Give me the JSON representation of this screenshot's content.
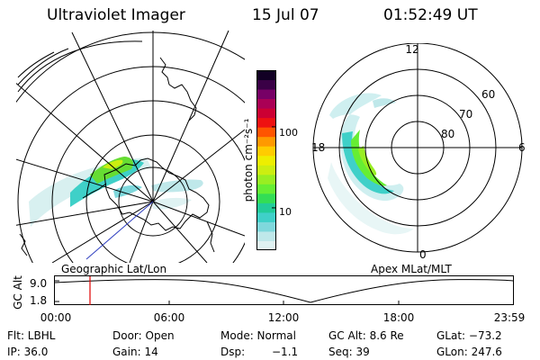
{
  "header": {
    "instrument": "Ultraviolet Imager",
    "date": "15 Jul 07",
    "time": "01:52:49 UT"
  },
  "colors": {
    "background": "#ffffff",
    "grid": "#000000",
    "marker": "#e00000",
    "trajectory": "#3040c0"
  },
  "colorbar": {
    "label": "photon cm⁻²s⁻¹",
    "scale": "log",
    "ticks": [
      "100",
      "10"
    ],
    "tick_values": [
      100,
      10
    ],
    "range": [
      3,
      500
    ],
    "colors": [
      "#dff2f2",
      "#bfe8ea",
      "#7fd8dc",
      "#3fd0c8",
      "#22cc99",
      "#33dd55",
      "#66ee33",
      "#99ee22",
      "#ccee11",
      "#eeee00",
      "#ffcc00",
      "#ff9900",
      "#ff5500",
      "#ee1111",
      "#cc0033",
      "#aa0055",
      "#770066",
      "#3a0046",
      "#120024"
    ]
  },
  "geo_map": {
    "label": "Geographic Lat/Lon"
  },
  "polar_map": {
    "label": "Apex MLat/MLT",
    "mlt_labels": {
      "top": "12",
      "left": "18",
      "right": "6",
      "bottom": "0"
    },
    "lat_labels": [
      "60",
      "70",
      "80"
    ],
    "lat_values": [
      60,
      70,
      80
    ]
  },
  "altitude_plot": {
    "axis_label": "GC Alt",
    "y_ticks": [
      "9.0",
      "1.8"
    ],
    "x_ticks": [
      "00:00",
      "06:00",
      "12:00",
      "18:00",
      "23:59"
    ],
    "marker_time": "01:52:49"
  },
  "info": {
    "row1": {
      "flt": "Flt: LBHL",
      "door": "Door: Open",
      "mode": "Mode: Normal",
      "gcalt": "GC Alt: 8.6 Re",
      "glat": "GLat: −73.2"
    },
    "row2": {
      "ip": "IP: 36.0",
      "gain": "Gain: 14",
      "dsp": "Dsp:",
      "dsp_val": "−1.1",
      "seq": "Seq: 39",
      "glon": "GLon: 247.6"
    }
  }
}
